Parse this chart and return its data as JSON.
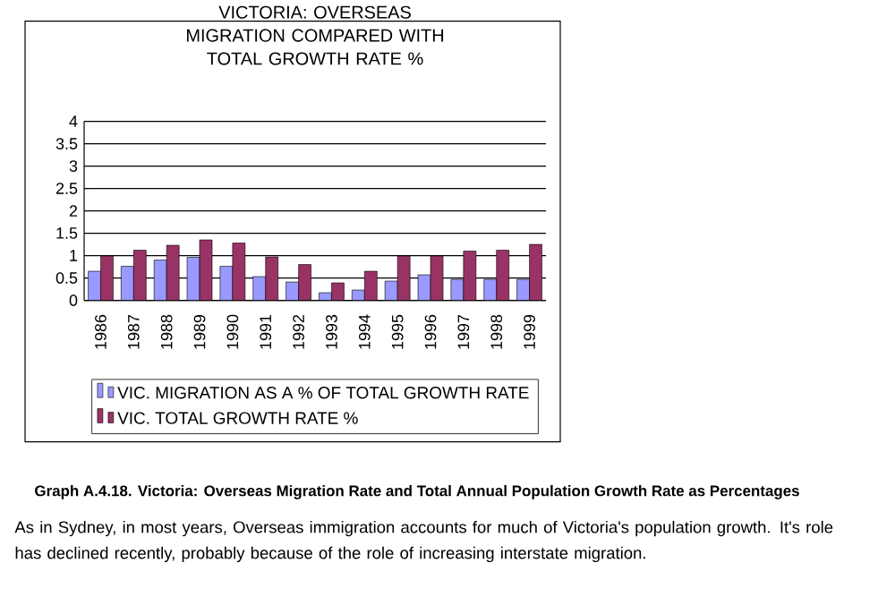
{
  "chart_data": {
    "type": "bar",
    "title": "VICTORIA: OVERSEAS MIGRATION COMPARED WITH TOTAL GROWTH RATE %",
    "categories": [
      "1986",
      "1987",
      "1988",
      "1989",
      "1990",
      "1991",
      "1992",
      "1993",
      "1994",
      "1995",
      "1996",
      "1997",
      "1998",
      "1999"
    ],
    "series": [
      {
        "name": "VIC. MIGRATION AS A % OF TOTAL GROWTH RATE",
        "color": "#9999ff",
        "values": [
          0.65,
          0.76,
          0.9,
          0.96,
          0.76,
          0.53,
          0.41,
          0.17,
          0.23,
          0.43,
          0.57,
          0.47,
          0.47,
          0.47
        ]
      },
      {
        "name": "VIC.   TOTAL GROWTH RATE %",
        "color": "#993366",
        "values": [
          0.99,
          1.12,
          1.23,
          1.35,
          1.28,
          0.97,
          0.8,
          0.39,
          0.65,
          0.99,
          0.99,
          1.1,
          1.12,
          1.25
        ]
      }
    ],
    "ylim": [
      0,
      4
    ],
    "yticks": [
      0,
      0.5,
      1,
      1.5,
      2,
      2.5,
      3,
      3.5,
      4
    ],
    "grid": "y",
    "legend": "bottom",
    "annotations": [
      "Graph A.4.18.  Victoria: Overseas  Migration Rate and Total Annual Population Growth Rate as Percentages",
      "As in Sydney, in most years, Overseas immigration accounts for much of Victoria's population growth. It's role has declined recently, probably because of the  role of increasing interstate migration."
    ]
  }
}
